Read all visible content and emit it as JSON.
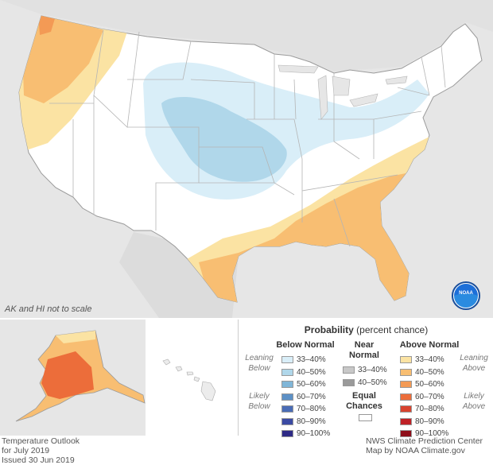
{
  "note": "AK and HI not to scale",
  "legend": {
    "title_bold": "Probability",
    "title_rest": "(percent chance)",
    "below_header": "Below Normal",
    "near_header_1": "Near",
    "near_header_2": "Normal",
    "above_header": "Above Normal",
    "leaning_below_1": "Leaning",
    "leaning_below_2": "Below",
    "likely_below_1": "Likely",
    "likely_below_2": "Below",
    "leaning_above_1": "Leaning",
    "leaning_above_2": "Above",
    "likely_above_1": "Likely",
    "likely_above_2": "Above",
    "equal_1": "Equal",
    "equal_2": "Chances",
    "below": [
      {
        "label": "33–40%",
        "color": "#d9eef8"
      },
      {
        "label": "40–50%",
        "color": "#b0d7ea"
      },
      {
        "label": "50–60%",
        "color": "#80b6d8"
      },
      {
        "label": "60–70%",
        "color": "#5c90c6"
      },
      {
        "label": "70–80%",
        "color": "#4a6cb6"
      },
      {
        "label": "80–90%",
        "color": "#3b4aa3"
      },
      {
        "label": "90–100%",
        "color": "#2e2a86"
      }
    ],
    "near": [
      {
        "label": "33–40%",
        "color": "#c8c8c8"
      },
      {
        "label": "40–50%",
        "color": "#9a9a9a"
      }
    ],
    "above": [
      {
        "label": "33–40%",
        "color": "#fbe3a3"
      },
      {
        "label": "40–50%",
        "color": "#f8be72"
      },
      {
        "label": "50–60%",
        "color": "#f39a55"
      },
      {
        "label": "60–70%",
        "color": "#ec6d3a"
      },
      {
        "label": "70–80%",
        "color": "#d8432f"
      },
      {
        "label": "80–90%",
        "color": "#bf2126"
      },
      {
        "label": "90–100%",
        "color": "#8e0e1a"
      }
    ]
  },
  "footer": {
    "left_1": "Temperature Outlook",
    "left_2": "for July 2019",
    "left_3": "Issued 30 Jun 2019",
    "right_1": "NWS Climate Prediction Center",
    "right_2": "Map by NOAA Climate.gov"
  },
  "logo_text": "NOAA"
}
